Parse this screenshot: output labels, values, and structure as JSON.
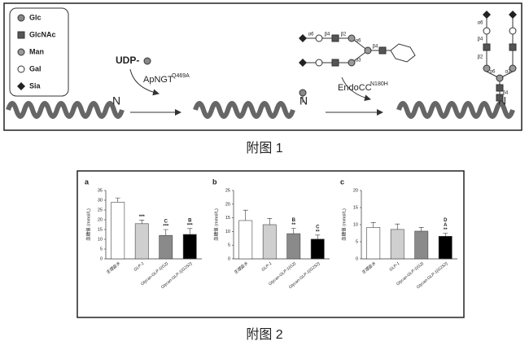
{
  "figure1": {
    "legend": [
      "Glc",
      "GlcNAc",
      "Man",
      "Gal",
      "Sia"
    ],
    "donor": "UDP-",
    "enzyme1": "ApNGT",
    "enzyme1_mutation": "Q469A",
    "enzyme2": "EndoCC",
    "enzyme2_mutation": "N180H",
    "site": "N",
    "linkages": [
      "α6",
      "β4",
      "β2",
      "α6",
      "α3",
      "β4"
    ],
    "caption": "附图 1"
  },
  "figure2_caption": "附图 2",
  "chart_data": [
    {
      "type": "bar",
      "panel": "a",
      "y_label": "血糖值 (mmol/L)",
      "categories": [
        "生理盐水",
        "GLP-1",
        "Glycan-GLP-1(G2)",
        "Glycan-GLP-1(G2S2)"
      ],
      "values": [
        29,
        18,
        12,
        12.5
      ],
      "errors": [
        2.2,
        1.8,
        3,
        3
      ],
      "colors": [
        "#ffffff",
        "#cfcfcf",
        "#8a8a8a",
        "#000000"
      ],
      "annotations": [
        null,
        [
          "***"
        ],
        [
          "C",
          "***"
        ],
        [
          "B",
          "***"
        ]
      ],
      "ylim": [
        0,
        35
      ],
      "yticks": [
        0,
        5,
        10,
        15,
        20,
        25,
        30,
        35
      ]
    },
    {
      "type": "bar",
      "panel": "b",
      "y_label": "血糖值 (mmol/L)",
      "categories": [
        "生理盐水",
        "GLP-1",
        "Glycan-GLP-1(G2)",
        "Glycan-GLP-1(G2S2)"
      ],
      "values": [
        14,
        12.5,
        9.2,
        7.2
      ],
      "errors": [
        3.8,
        2.3,
        2,
        1.5
      ],
      "colors": [
        "#ffffff",
        "#cfcfcf",
        "#8a8a8a",
        "#000000"
      ],
      "annotations": [
        null,
        null,
        [
          "B",
          "**"
        ],
        [
          "C",
          "**"
        ]
      ],
      "ylim": [
        0,
        25
      ],
      "yticks": [
        0,
        5,
        10,
        15,
        20,
        25
      ]
    },
    {
      "type": "bar",
      "panel": "c",
      "y_label": "血糖值 (mmol/L)",
      "categories": [
        "生理盐水",
        "GLP-1",
        "Glycan-GLP-1(G2)",
        "Glycan-GLP-1(G2S2)"
      ],
      "values": [
        9.2,
        8.6,
        8.1,
        6.6
      ],
      "errors": [
        1.4,
        1.6,
        1.1,
        0.9
      ],
      "colors": [
        "#ffffff",
        "#cfcfcf",
        "#8a8a8a",
        "#000000"
      ],
      "annotations": [
        null,
        null,
        null,
        [
          "D",
          "A",
          "**"
        ]
      ],
      "ylim": [
        0,
        20
      ],
      "yticks": [
        0,
        5,
        10,
        15,
        20
      ]
    }
  ]
}
